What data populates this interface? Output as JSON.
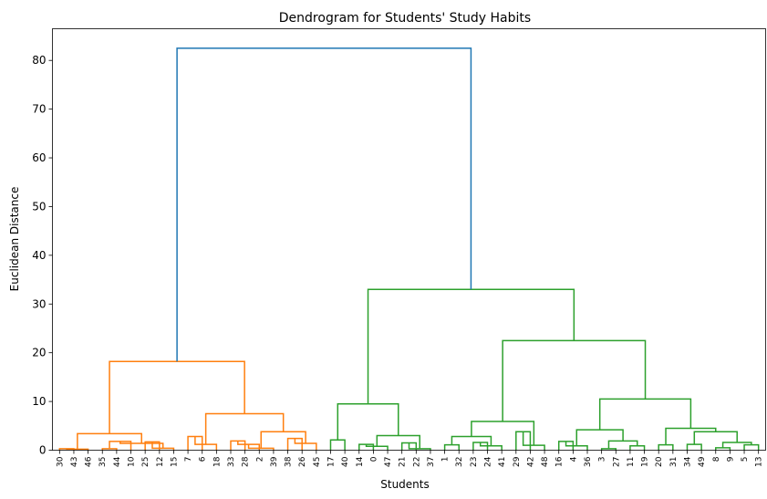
{
  "chart_data": {
    "type": "dendrogram",
    "title": "Dendrogram for Students' Study Habits",
    "xlabel": "Students",
    "ylabel": "Euclidean Distance",
    "ylim": [
      0,
      86.5
    ],
    "yticks": [
      0,
      10,
      20,
      30,
      40,
      50,
      60,
      70,
      80
    ],
    "grid": false,
    "leaves": [
      "30",
      "43",
      "46",
      "35",
      "44",
      "10",
      "25",
      "12",
      "15",
      "7",
      "6",
      "18",
      "33",
      "28",
      "2",
      "39",
      "38",
      "26",
      "45",
      "17",
      "40",
      "14",
      "0",
      "47",
      "21",
      "22",
      "37",
      "1",
      "32",
      "23",
      "24",
      "41",
      "29",
      "42",
      "48",
      "16",
      "4",
      "36",
      "3",
      "27",
      "11",
      "19",
      "20",
      "31",
      "34",
      "49",
      "8",
      "9",
      "5",
      "13"
    ],
    "colors": {
      "top": "#1f77b4",
      "cluster_orange": "#ff7f0e",
      "cluster_green": "#2ca02c"
    },
    "merges": [
      {
        "i": [
          0,
          1
        ],
        "h": 0.3,
        "c": "cluster_orange"
      },
      {
        "i": [
          50,
          2
        ],
        "h": 0.2,
        "c": "cluster_orange"
      },
      {
        "i": [
          3,
          4
        ],
        "h": 0.3,
        "c": "cluster_orange"
      },
      {
        "i": [
          5,
          52
        ],
        "h": 1.8,
        "c": "cluster_orange"
      },
      {
        "i": [
          6,
          7
        ],
        "h": 1.7,
        "c": "cluster_orange"
      },
      {
        "i": [
          54,
          8
        ],
        "h": 0.4,
        "c": "cluster_orange"
      },
      {
        "i": [
          53,
          55
        ],
        "h": 1.4,
        "c": "cluster_orange"
      },
      {
        "i": [
          51,
          56
        ],
        "h": 3.4,
        "c": "cluster_orange"
      },
      {
        "i": [
          9,
          10
        ],
        "h": 2.8,
        "c": "cluster_orange"
      },
      {
        "i": [
          58,
          11
        ],
        "h": 1.2,
        "c": "cluster_orange"
      },
      {
        "i": [
          12,
          13
        ],
        "h": 1.9,
        "c": "cluster_orange"
      },
      {
        "i": [
          60,
          14
        ],
        "h": 1.2,
        "c": "cluster_orange"
      },
      {
        "i": [
          61,
          15
        ],
        "h": 0.4,
        "c": "cluster_orange"
      },
      {
        "i": [
          16,
          17
        ],
        "h": 2.4,
        "c": "cluster_orange"
      },
      {
        "i": [
          63,
          18
        ],
        "h": 1.4,
        "c": "cluster_orange"
      },
      {
        "i": [
          62,
          64
        ],
        "h": 3.8,
        "c": "cluster_orange"
      },
      {
        "i": [
          59,
          65
        ],
        "h": 7.5,
        "c": "cluster_orange"
      },
      {
        "i": [
          57,
          66
        ],
        "h": 18.2,
        "c": "cluster_orange"
      },
      {
        "i": [
          19,
          20
        ],
        "h": 2.1,
        "c": "cluster_green"
      },
      {
        "i": [
          21,
          22
        ],
        "h": 1.2,
        "c": "cluster_green"
      },
      {
        "i": [
          69,
          23
        ],
        "h": 0.8,
        "c": "cluster_green"
      },
      {
        "i": [
          24,
          25
        ],
        "h": 1.5,
        "c": "cluster_green"
      },
      {
        "i": [
          71,
          26
        ],
        "h": 0.3,
        "c": "cluster_green"
      },
      {
        "i": [
          70,
          72
        ],
        "h": 3.0,
        "c": "cluster_green"
      },
      {
        "i": [
          68,
          73
        ],
        "h": 9.5,
        "c": "cluster_green"
      },
      {
        "i": [
          27,
          28
        ],
        "h": 1.1,
        "c": "cluster_green"
      },
      {
        "i": [
          29,
          30
        ],
        "h": 1.6,
        "c": "cluster_green"
      },
      {
        "i": [
          76,
          31
        ],
        "h": 0.9,
        "c": "cluster_green"
      },
      {
        "i": [
          75,
          77
        ],
        "h": 2.8,
        "c": "cluster_green"
      },
      {
        "i": [
          32,
          33
        ],
        "h": 3.8,
        "c": "cluster_green"
      },
      {
        "i": [
          79,
          34
        ],
        "h": 1.0,
        "c": "cluster_green"
      },
      {
        "i": [
          78,
          80
        ],
        "h": 5.9,
        "c": "cluster_green"
      },
      {
        "i": [
          35,
          36
        ],
        "h": 1.8,
        "c": "cluster_green"
      },
      {
        "i": [
          82,
          37
        ],
        "h": 0.9,
        "c": "cluster_green"
      },
      {
        "i": [
          38,
          39
        ],
        "h": 0.3,
        "c": "cluster_green"
      },
      {
        "i": [
          40,
          41
        ],
        "h": 0.9,
        "c": "cluster_green"
      },
      {
        "i": [
          84,
          85
        ],
        "h": 1.9,
        "c": "cluster_green"
      },
      {
        "i": [
          83,
          86
        ],
        "h": 4.2,
        "c": "cluster_green"
      },
      {
        "i": [
          42,
          43
        ],
        "h": 1.1,
        "c": "cluster_green"
      },
      {
        "i": [
          44,
          45
        ],
        "h": 1.2,
        "c": "cluster_green"
      },
      {
        "i": [
          46,
          47
        ],
        "h": 0.5,
        "c": "cluster_green"
      },
      {
        "i": [
          48,
          49
        ],
        "h": 1.1,
        "c": "cluster_green"
      },
      {
        "i": [
          90,
          91
        ],
        "h": 1.6,
        "c": "cluster_green"
      },
      {
        "i": [
          89,
          92
        ],
        "h": 3.8,
        "c": "cluster_green"
      },
      {
        "i": [
          88,
          93
        ],
        "h": 4.5,
        "c": "cluster_green"
      },
      {
        "i": [
          87,
          94
        ],
        "h": 10.5,
        "c": "cluster_green"
      },
      {
        "i": [
          81,
          95
        ],
        "h": 22.5,
        "c": "cluster_green"
      },
      {
        "i": [
          74,
          96
        ],
        "h": 33.0,
        "c": "cluster_green"
      },
      {
        "i": [
          67,
          97
        ],
        "h": 82.5,
        "c": "top"
      }
    ]
  }
}
